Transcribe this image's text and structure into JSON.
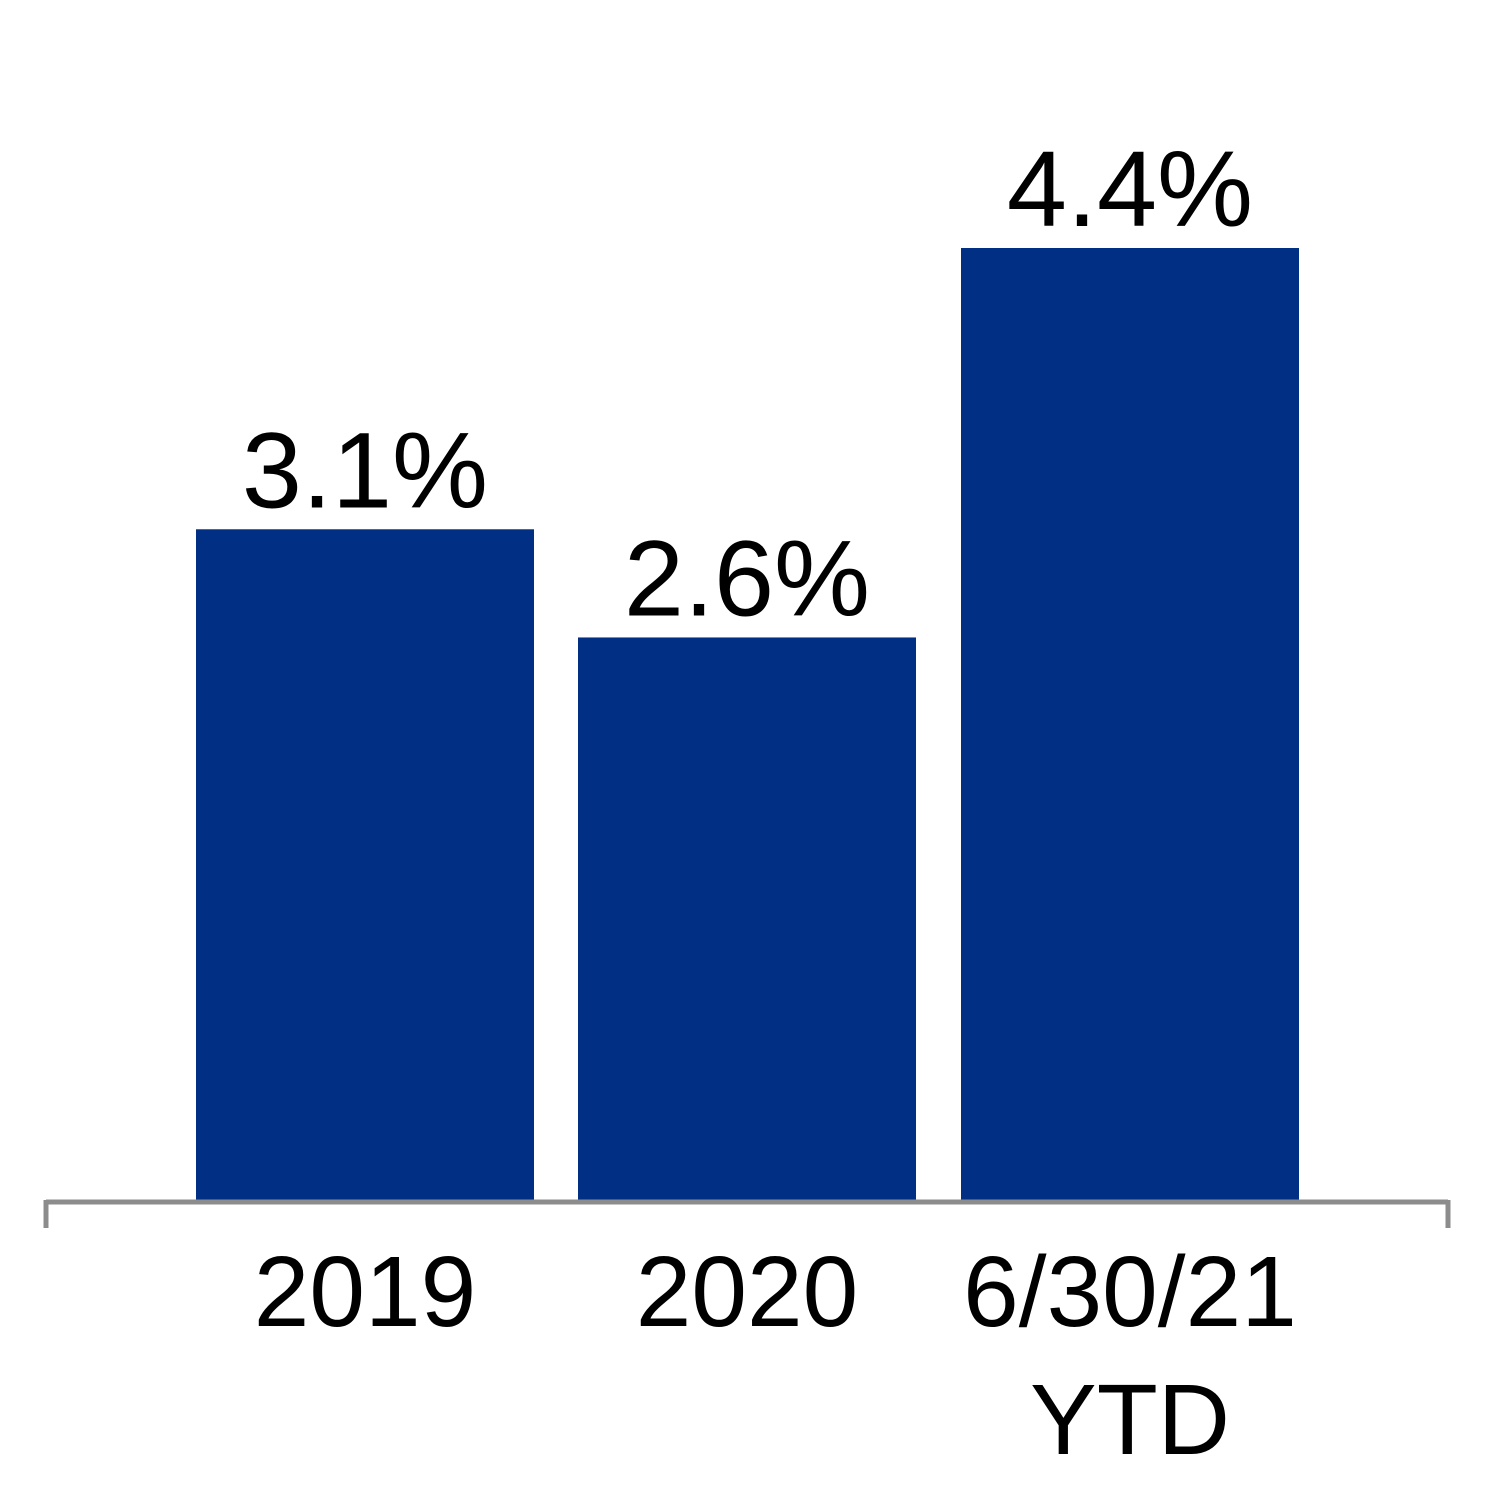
{
  "chart_data": {
    "type": "bar",
    "title": "",
    "xlabel": "",
    "ylabel": "",
    "categories": [
      [
        "2019"
      ],
      [
        "2020"
      ],
      [
        "6/30/21",
        "YTD"
      ]
    ],
    "values": [
      3.1,
      2.6,
      4.4
    ],
    "data_labels": [
      "3.1%",
      "2.6%",
      "4.4%"
    ],
    "ylim": [
      0,
      5.3
    ],
    "grid": false,
    "legend": "none",
    "bar_color": "#012F83",
    "axis_color": "#8C8C8C"
  }
}
